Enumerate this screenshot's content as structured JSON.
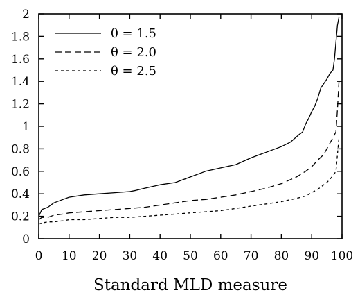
{
  "chart_data": {
    "type": "line",
    "title": "",
    "xlabel": "Standard MLD measure",
    "ylabel": "",
    "xlim": [
      0,
      100
    ],
    "ylim": [
      0,
      2
    ],
    "xticks": [
      0,
      10,
      20,
      30,
      40,
      50,
      60,
      70,
      80,
      90,
      100
    ],
    "xtick_labels": [
      "0",
      "10",
      "20",
      "30",
      "40",
      "50",
      "60",
      "70",
      "80",
      "90",
      "100"
    ],
    "yticks": [
      0,
      0.2,
      0.4,
      0.6,
      0.8,
      1,
      1.2,
      1.4,
      1.6,
      1.8,
      2
    ],
    "ytick_labels": [
      "0",
      "0.2",
      "0.4",
      "0.6",
      "0.8",
      "1",
      "1.2",
      "1.4",
      "1.6",
      "1.8",
      "2"
    ],
    "grid": false,
    "legend_position": "top-left",
    "series": [
      {
        "name": "θ = 1.5",
        "line_style": "solid",
        "points": [
          [
            0,
            0.2
          ],
          [
            1,
            0.26
          ],
          [
            3,
            0.28
          ],
          [
            5,
            0.32
          ],
          [
            8,
            0.35
          ],
          [
            10,
            0.37
          ],
          [
            15,
            0.39
          ],
          [
            20,
            0.4
          ],
          [
            25,
            0.41
          ],
          [
            30,
            0.42
          ],
          [
            32,
            0.43
          ],
          [
            35,
            0.45
          ],
          [
            40,
            0.48
          ],
          [
            45,
            0.5
          ],
          [
            50,
            0.55
          ],
          [
            55,
            0.6
          ],
          [
            60,
            0.63
          ],
          [
            65,
            0.66
          ],
          [
            70,
            0.72
          ],
          [
            75,
            0.77
          ],
          [
            80,
            0.82
          ],
          [
            83,
            0.86
          ],
          [
            86,
            0.93
          ],
          [
            87,
            0.95
          ],
          [
            88,
            1.02
          ],
          [
            89,
            1.07
          ],
          [
            90,
            1.13
          ],
          [
            91,
            1.18
          ],
          [
            92,
            1.25
          ],
          [
            93,
            1.34
          ],
          [
            94,
            1.38
          ],
          [
            95,
            1.42
          ],
          [
            96,
            1.47
          ],
          [
            97,
            1.5
          ],
          [
            97.5,
            1.6
          ],
          [
            98,
            1.75
          ],
          [
            98.5,
            1.9
          ],
          [
            99,
            1.97
          ]
        ]
      },
      {
        "name": "θ = 2.0",
        "line_style": "dashed",
        "points": [
          [
            0,
            0.17
          ],
          [
            1,
            0.19
          ],
          [
            3,
            0.19
          ],
          [
            5,
            0.21
          ],
          [
            8,
            0.22
          ],
          [
            10,
            0.23
          ],
          [
            15,
            0.24
          ],
          [
            20,
            0.25
          ],
          [
            25,
            0.26
          ],
          [
            30,
            0.27
          ],
          [
            35,
            0.28
          ],
          [
            40,
            0.3
          ],
          [
            45,
            0.32
          ],
          [
            50,
            0.34
          ],
          [
            55,
            0.35
          ],
          [
            60,
            0.37
          ],
          [
            65,
            0.39
          ],
          [
            70,
            0.42
          ],
          [
            75,
            0.45
          ],
          [
            80,
            0.49
          ],
          [
            85,
            0.55
          ],
          [
            88,
            0.6
          ],
          [
            90,
            0.64
          ],
          [
            92,
            0.7
          ],
          [
            94,
            0.75
          ],
          [
            95,
            0.8
          ],
          [
            96,
            0.85
          ],
          [
            97,
            0.9
          ],
          [
            98,
            0.95
          ],
          [
            98.5,
            1.15
          ],
          [
            99,
            1.4
          ]
        ]
      },
      {
        "name": "θ = 2.5",
        "line_style": "dotted",
        "points": [
          [
            0,
            0.13
          ],
          [
            1,
            0.14
          ],
          [
            3,
            0.15
          ],
          [
            5,
            0.15
          ],
          [
            8,
            0.16
          ],
          [
            10,
            0.17
          ],
          [
            15,
            0.17
          ],
          [
            20,
            0.18
          ],
          [
            25,
            0.19
          ],
          [
            30,
            0.19
          ],
          [
            35,
            0.2
          ],
          [
            40,
            0.21
          ],
          [
            45,
            0.22
          ],
          [
            50,
            0.23
          ],
          [
            55,
            0.24
          ],
          [
            60,
            0.25
          ],
          [
            65,
            0.27
          ],
          [
            70,
            0.29
          ],
          [
            75,
            0.31
          ],
          [
            80,
            0.33
          ],
          [
            85,
            0.36
          ],
          [
            88,
            0.38
          ],
          [
            90,
            0.41
          ],
          [
            92,
            0.44
          ],
          [
            94,
            0.48
          ],
          [
            95,
            0.5
          ],
          [
            96,
            0.53
          ],
          [
            97,
            0.56
          ],
          [
            98,
            0.6
          ],
          [
            98.5,
            0.75
          ],
          [
            99,
            0.9
          ]
        ]
      }
    ]
  }
}
